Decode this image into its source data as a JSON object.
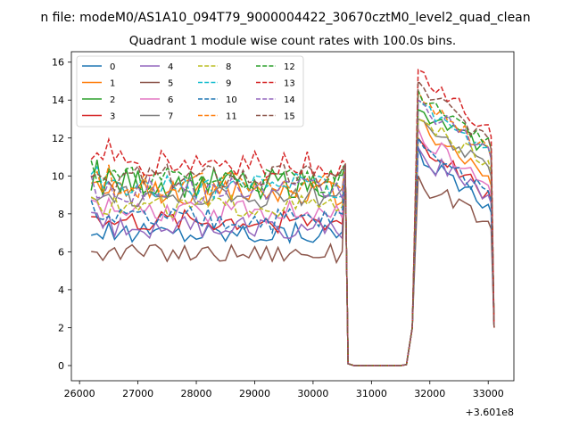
{
  "chart_data": {
    "type": "line",
    "suptitle": "n file: modeM0/AS1A10_094T79_9000004422_30670cztM0_level2_quad_clean",
    "title": "Quadrant 1 module wise count rates with 100.0s bins.",
    "xlabel": "",
    "ylabel": "",
    "x_offset_label": "+3.601e8",
    "xlim": [
      25860,
      33440
    ],
    "ylim": [
      -0.8,
      16.55
    ],
    "xticks": [
      26000,
      27000,
      28000,
      29000,
      30000,
      31000,
      32000,
      33000
    ],
    "xtick_labels": [
      "26000",
      "27000",
      "28000",
      "29000",
      "30000",
      "31000",
      "32000",
      "33000"
    ],
    "yticks": [
      0,
      2,
      4,
      6,
      8,
      10,
      12,
      14,
      16
    ],
    "ytick_labels": [
      "0",
      "2",
      "4",
      "6",
      "8",
      "10",
      "12",
      "14",
      "16"
    ],
    "legend_position": "top-left",
    "legend_columns": 4,
    "x": [
      26200,
      26300,
      26400,
      26500,
      26600,
      26700,
      26800,
      26900,
      27000,
      27100,
      27200,
      27300,
      27400,
      27500,
      27600,
      27700,
      27800,
      27900,
      28000,
      28100,
      28200,
      28300,
      28400,
      28500,
      28600,
      28700,
      28800,
      28900,
      29000,
      29100,
      29200,
      29300,
      29400,
      29500,
      29600,
      29700,
      29800,
      29900,
      30000,
      30100,
      30200,
      30300,
      30400,
      30500,
      30550,
      30600,
      30700,
      30800,
      30900,
      31000,
      31100,
      31200,
      31300,
      31400,
      31500,
      31600,
      31700,
      31800,
      31900,
      32000,
      32100,
      32200,
      32300,
      32400,
      32500,
      32600,
      32700,
      32800,
      32900,
      33000,
      33050,
      33100
    ],
    "series": [
      {
        "name": "0",
        "color": "#1f77b4",
        "dashed": false,
        "base": 7.0,
        "amp": 0.6,
        "post": [
          11.5,
          9.0,
          8.5
        ],
        "spike": 10.5
      },
      {
        "name": "1",
        "color": "#ff7f0e",
        "dashed": false,
        "base": 9.1,
        "amp": 0.7,
        "post": [
          13.0,
          11.0,
          10.0
        ],
        "spike": 10.6
      },
      {
        "name": "2",
        "color": "#2ca02c",
        "dashed": false,
        "base": 9.6,
        "amp": 0.8,
        "post": [
          13.5,
          12.0,
          11.5
        ],
        "spike": 10.6
      },
      {
        "name": "3",
        "color": "#d62728",
        "dashed": false,
        "base": 7.6,
        "amp": 0.6,
        "post": [
          12.0,
          10.0,
          9.2
        ],
        "spike": 10.5
      },
      {
        "name": "4",
        "color": "#9467bd",
        "dashed": false,
        "base": 7.3,
        "amp": 0.6,
        "post": [
          11.5,
          9.6,
          9.0
        ],
        "spike": 10.5
      },
      {
        "name": "5",
        "color": "#8c564b",
        "dashed": false,
        "base": 5.9,
        "amp": 0.5,
        "post": [
          10.0,
          8.0,
          7.6
        ],
        "spike": 10.5
      },
      {
        "name": "6",
        "color": "#e377c2",
        "dashed": false,
        "base": 8.1,
        "amp": 0.6,
        "post": [
          12.5,
          10.5,
          9.5
        ],
        "spike": 10.5
      },
      {
        "name": "7",
        "color": "#7f7f7f",
        "dashed": false,
        "base": 8.9,
        "amp": 0.6,
        "post": [
          13.0,
          11.0,
          10.5
        ],
        "spike": 10.6
      },
      {
        "name": "8",
        "color": "#bcbd22",
        "dashed": true,
        "base": 8.4,
        "amp": 0.6,
        "post": [
          13.0,
          11.5,
          10.8
        ],
        "spike": 10.6
      },
      {
        "name": "9",
        "color": "#17becf",
        "dashed": true,
        "base": 9.5,
        "amp": 0.7,
        "post": [
          14.0,
          12.5,
          11.5
        ],
        "spike": 10.6
      },
      {
        "name": "10",
        "color": "#1f77b4",
        "dashed": true,
        "base": 7.7,
        "amp": 0.7,
        "post": [
          12.0,
          10.0,
          9.2
        ],
        "spike": 10.5
      },
      {
        "name": "11",
        "color": "#ff7f0e",
        "dashed": true,
        "base": 9.5,
        "amp": 0.7,
        "post": [
          14.5,
          12.5,
          11.5
        ],
        "spike": 10.6
      },
      {
        "name": "12",
        "color": "#2ca02c",
        "dashed": true,
        "base": 9.8,
        "amp": 0.7,
        "post": [
          14.5,
          12.8,
          12.0
        ],
        "spike": 10.6
      },
      {
        "name": "13",
        "color": "#d62728",
        "dashed": true,
        "base": 10.7,
        "amp": 0.8,
        "post": [
          15.6,
          13.5,
          12.7
        ],
        "spike": 10.7
      },
      {
        "name": "14",
        "color": "#9467bd",
        "dashed": true,
        "base": 9.2,
        "amp": 0.7,
        "post": [
          14.0,
          12.3,
          11.5
        ],
        "spike": 10.6
      },
      {
        "name": "15",
        "color": "#8c564b",
        "dashed": true,
        "base": 9.9,
        "amp": 0.7,
        "post": [
          15.0,
          13.0,
          12.0
        ],
        "spike": 10.6
      }
    ]
  }
}
